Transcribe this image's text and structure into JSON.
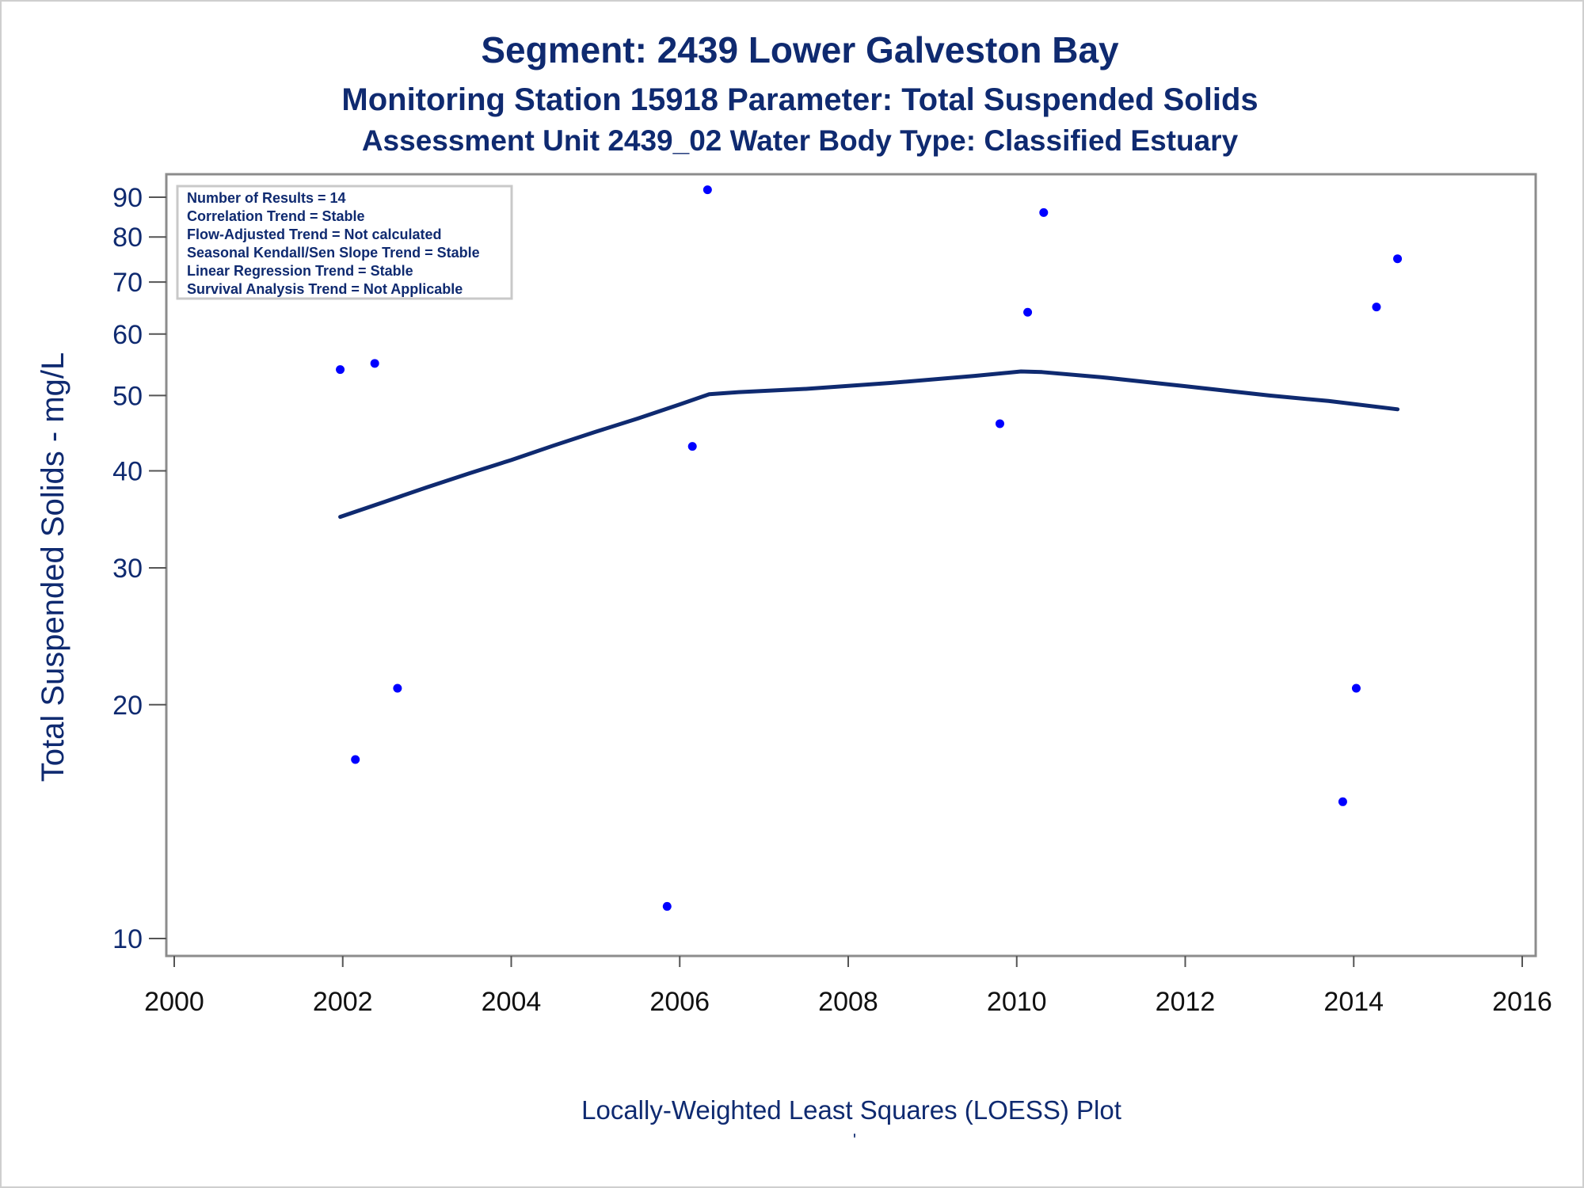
{
  "chart_data": {
    "type": "scatter",
    "title": "Segment: 2439  Lower Galveston Bay",
    "subtitle": "Monitoring Station 15918 Parameter: Total Suspended Solids",
    "subtitle2": "Assessment Unit 2439_02   Water Body Type: Classified Estuary",
    "xlabel": "",
    "ylabel": "Total Suspended Solids - mg/L",
    "footer": "Locally-Weighted Least Squares (LOESS) Plot",
    "footer_mark": "'",
    "xlim": [
      2000,
      2016
    ],
    "ylim": [
      9.7,
      95
    ],
    "y_scale": "log",
    "x_ticks": [
      "2000",
      "2002",
      "2004",
      "2006",
      "2008",
      "2010",
      "2012",
      "2014",
      "2016"
    ],
    "y_ticks": [
      "10",
      "20",
      "30",
      "40",
      "50",
      "60",
      "70",
      "80",
      "90"
    ],
    "grid": false,
    "legend_position": "top-left",
    "stats": [
      "Number of Results = 14",
      "Correlation Trend = Stable",
      "Flow-Adjusted Trend = Not calculated",
      "Seasonal Kendall/Sen Slope Trend = Stable",
      "Linear Regression Trend = Stable",
      "Survival Analysis Trend = Not Applicable"
    ],
    "points": [
      {
        "x": 2001.97,
        "y": 54
      },
      {
        "x": 2002.15,
        "y": 17
      },
      {
        "x": 2002.38,
        "y": 55
      },
      {
        "x": 2002.65,
        "y": 21
      },
      {
        "x": 2005.85,
        "y": 11
      },
      {
        "x": 2006.15,
        "y": 43
      },
      {
        "x": 2006.33,
        "y": 92
      },
      {
        "x": 2009.8,
        "y": 46
      },
      {
        "x": 2010.13,
        "y": 64
      },
      {
        "x": 2010.32,
        "y": 86
      },
      {
        "x": 2013.87,
        "y": 15
      },
      {
        "x": 2014.03,
        "y": 21
      },
      {
        "x": 2014.27,
        "y": 65
      },
      {
        "x": 2014.52,
        "y": 75
      }
    ],
    "loess": [
      {
        "x": 2001.97,
        "y": 34.9
      },
      {
        "x": 2002.5,
        "y": 36.5
      },
      {
        "x": 2003.0,
        "y": 38.1
      },
      {
        "x": 2003.5,
        "y": 39.7
      },
      {
        "x": 2004.0,
        "y": 41.3
      },
      {
        "x": 2004.5,
        "y": 43.1
      },
      {
        "x": 2005.0,
        "y": 44.9
      },
      {
        "x": 2005.5,
        "y": 46.7
      },
      {
        "x": 2006.0,
        "y": 48.7
      },
      {
        "x": 2006.35,
        "y": 50.2
      },
      {
        "x": 2006.7,
        "y": 50.5
      },
      {
        "x": 2007.5,
        "y": 51.0
      },
      {
        "x": 2008.5,
        "y": 51.9
      },
      {
        "x": 2009.5,
        "y": 53.0
      },
      {
        "x": 2010.05,
        "y": 53.7
      },
      {
        "x": 2010.3,
        "y": 53.6
      },
      {
        "x": 2011.0,
        "y": 52.8
      },
      {
        "x": 2012.0,
        "y": 51.4
      },
      {
        "x": 2013.0,
        "y": 50.0
      },
      {
        "x": 2013.7,
        "y": 49.2
      },
      {
        "x": 2014.52,
        "y": 48.0
      }
    ],
    "point_color": "#0000ff",
    "line_color": "#0f2a70"
  }
}
